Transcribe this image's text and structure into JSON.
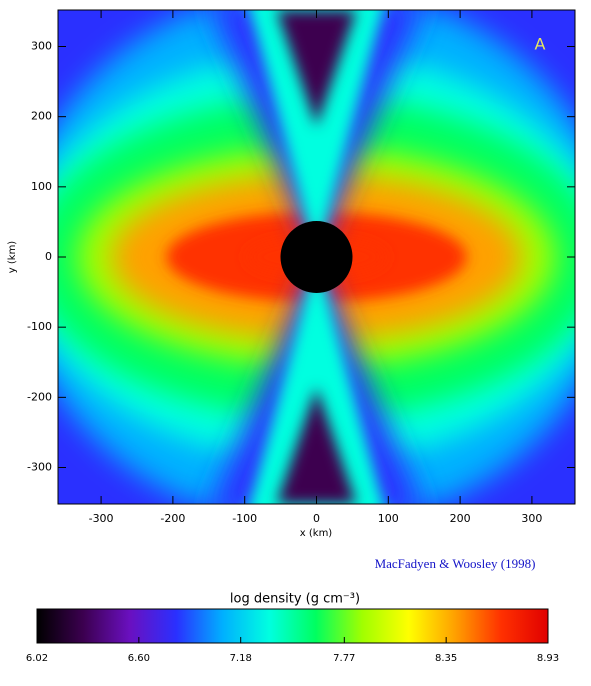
{
  "chart_data": {
    "type": "density_map",
    "annotation": "A",
    "xlabel": "x (km)",
    "ylabel": "y (km)",
    "credit": "MacFadyen & Woosley (1998)",
    "xlim": [
      -360,
      360
    ],
    "ylim": [
      -352,
      352
    ],
    "xticks": [
      -300,
      -200,
      -100,
      0,
      100,
      200,
      300
    ],
    "yticks": [
      -300,
      -200,
      -100,
      0,
      100,
      200,
      300
    ],
    "colorbar": {
      "label": "log density (g cm⁻³)",
      "clim": [
        6.02,
        8.93
      ],
      "ticks": [
        6.02,
        {
          "value": 6.6,
          "label": "6.60"
        },
        7.18,
        7.77,
        8.35,
        8.93
      ],
      "colormap": [
        "#000000",
        "#3c0050",
        "#6a10c0",
        "#2a30ff",
        "#00b0ff",
        "#00ffe0",
        "#00ff60",
        "#a0ff00",
        "#ffff00",
        "#ffa000",
        "#ff3000",
        "#e00000"
      ]
    }
  }
}
